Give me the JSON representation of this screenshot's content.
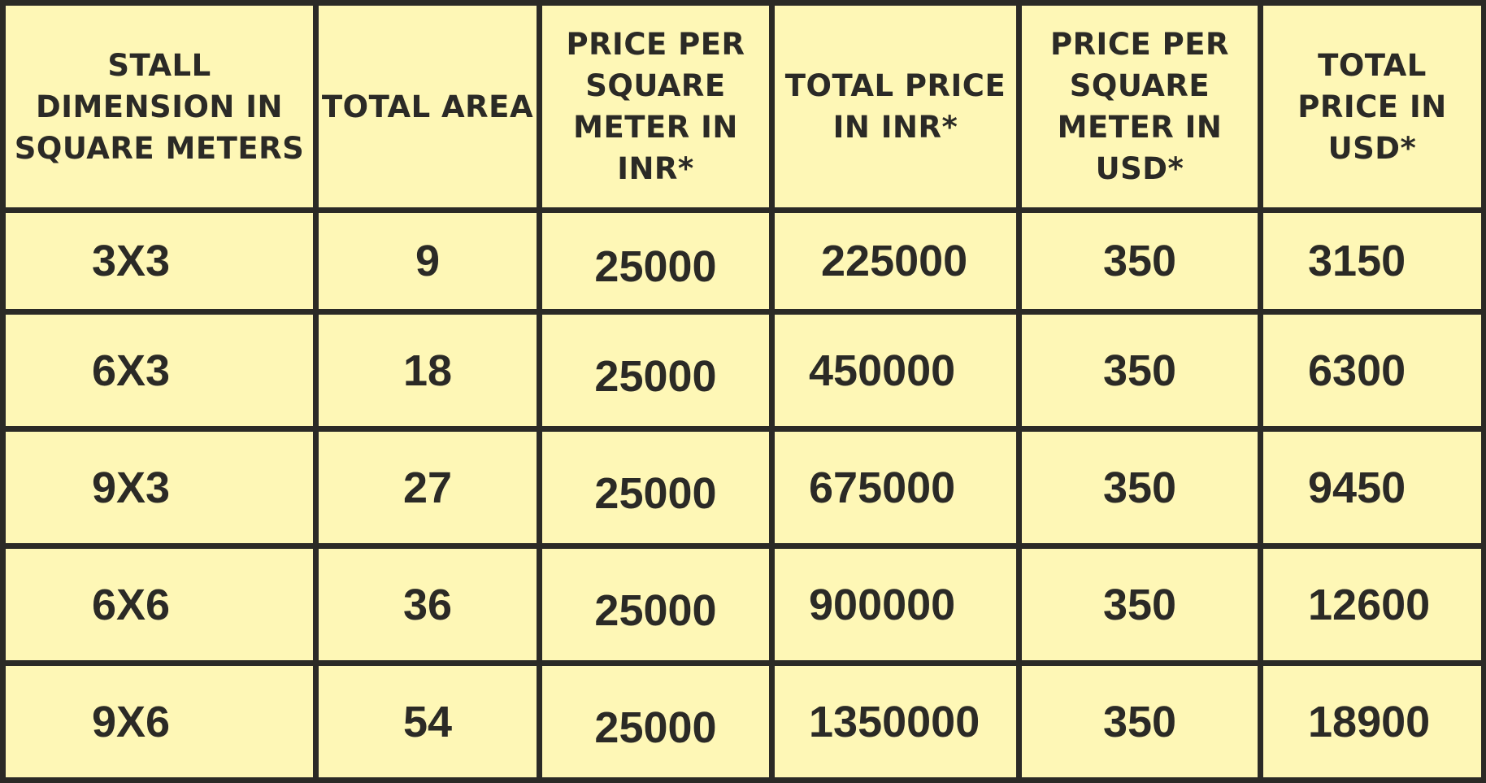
{
  "table": {
    "headers": [
      "STALL DIMENSION IN SQUARE METERS",
      "TOTAL AREA",
      "PRICE PER SQUARE METER IN INR*",
      "TOTAL PRICE IN INR*",
      "PRICE PER SQUARE METER IN USD*",
      "TOTAL PRICE IN USD*"
    ],
    "rows": [
      [
        "3X3",
        "9",
        "25000",
        "225000",
        "350",
        "3150"
      ],
      [
        "6X3",
        "18",
        "25000",
        "450000",
        "350",
        "6300"
      ],
      [
        "9X3",
        "27",
        "25000",
        "675000",
        "350",
        "9450"
      ],
      [
        "6X6",
        "36",
        "25000",
        "900000",
        "350",
        "12600"
      ],
      [
        "9X6",
        "54",
        "25000",
        "1350000",
        "350",
        "18900"
      ]
    ]
  },
  "colors": {
    "cell_background": "#fef7b6",
    "grid_lines": "#2b2a26",
    "text": "#2b2a26"
  }
}
